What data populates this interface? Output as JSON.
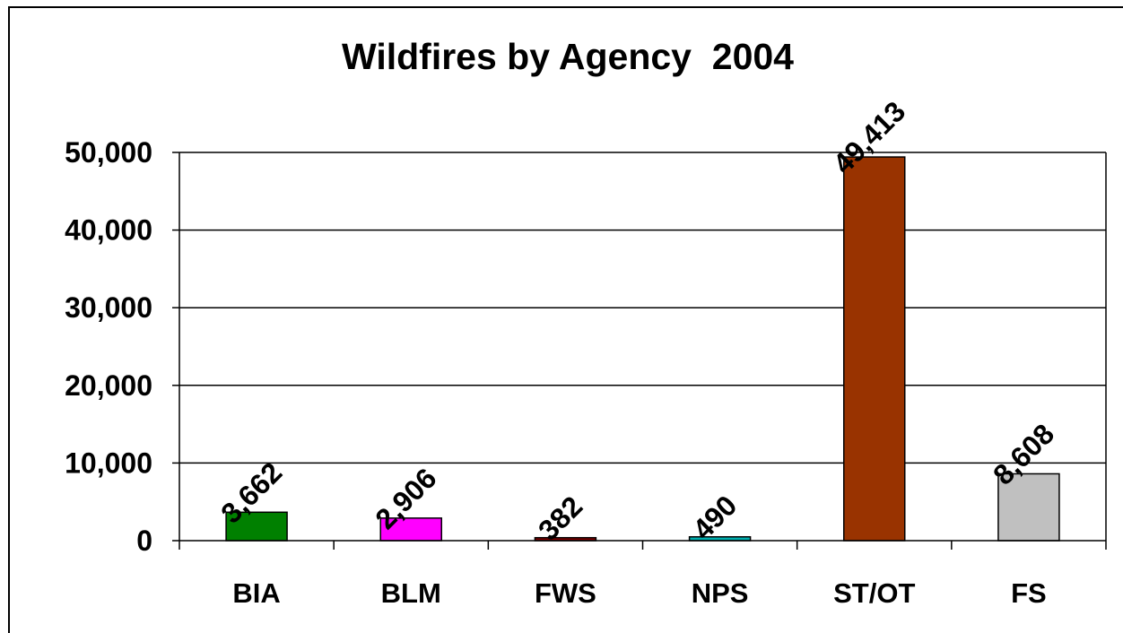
{
  "chart_data": {
    "type": "bar",
    "title": "Wildfires by Agency  2004",
    "xlabel": "",
    "ylabel": "",
    "categories": [
      "BIA",
      "BLM",
      "FWS",
      "NPS",
      "ST/OT",
      "FS"
    ],
    "values": [
      3662,
      2906,
      382,
      490,
      49413,
      8608
    ],
    "value_labels": [
      "3,662",
      "2,906",
      "382",
      "490",
      "49,413",
      "8,608"
    ],
    "bar_colors": [
      "#008000",
      "#FF00FF",
      "#800000",
      "#00B0B0",
      "#993300",
      "#C0C0C0"
    ],
    "ylim": [
      0,
      50000
    ],
    "yticks": [
      0,
      10000,
      20000,
      30000,
      40000,
      50000
    ],
    "ytick_labels": [
      "0",
      "10,000",
      "20,000",
      "30,000",
      "40,000",
      "50,000"
    ],
    "grid": true,
    "legend": "none"
  }
}
